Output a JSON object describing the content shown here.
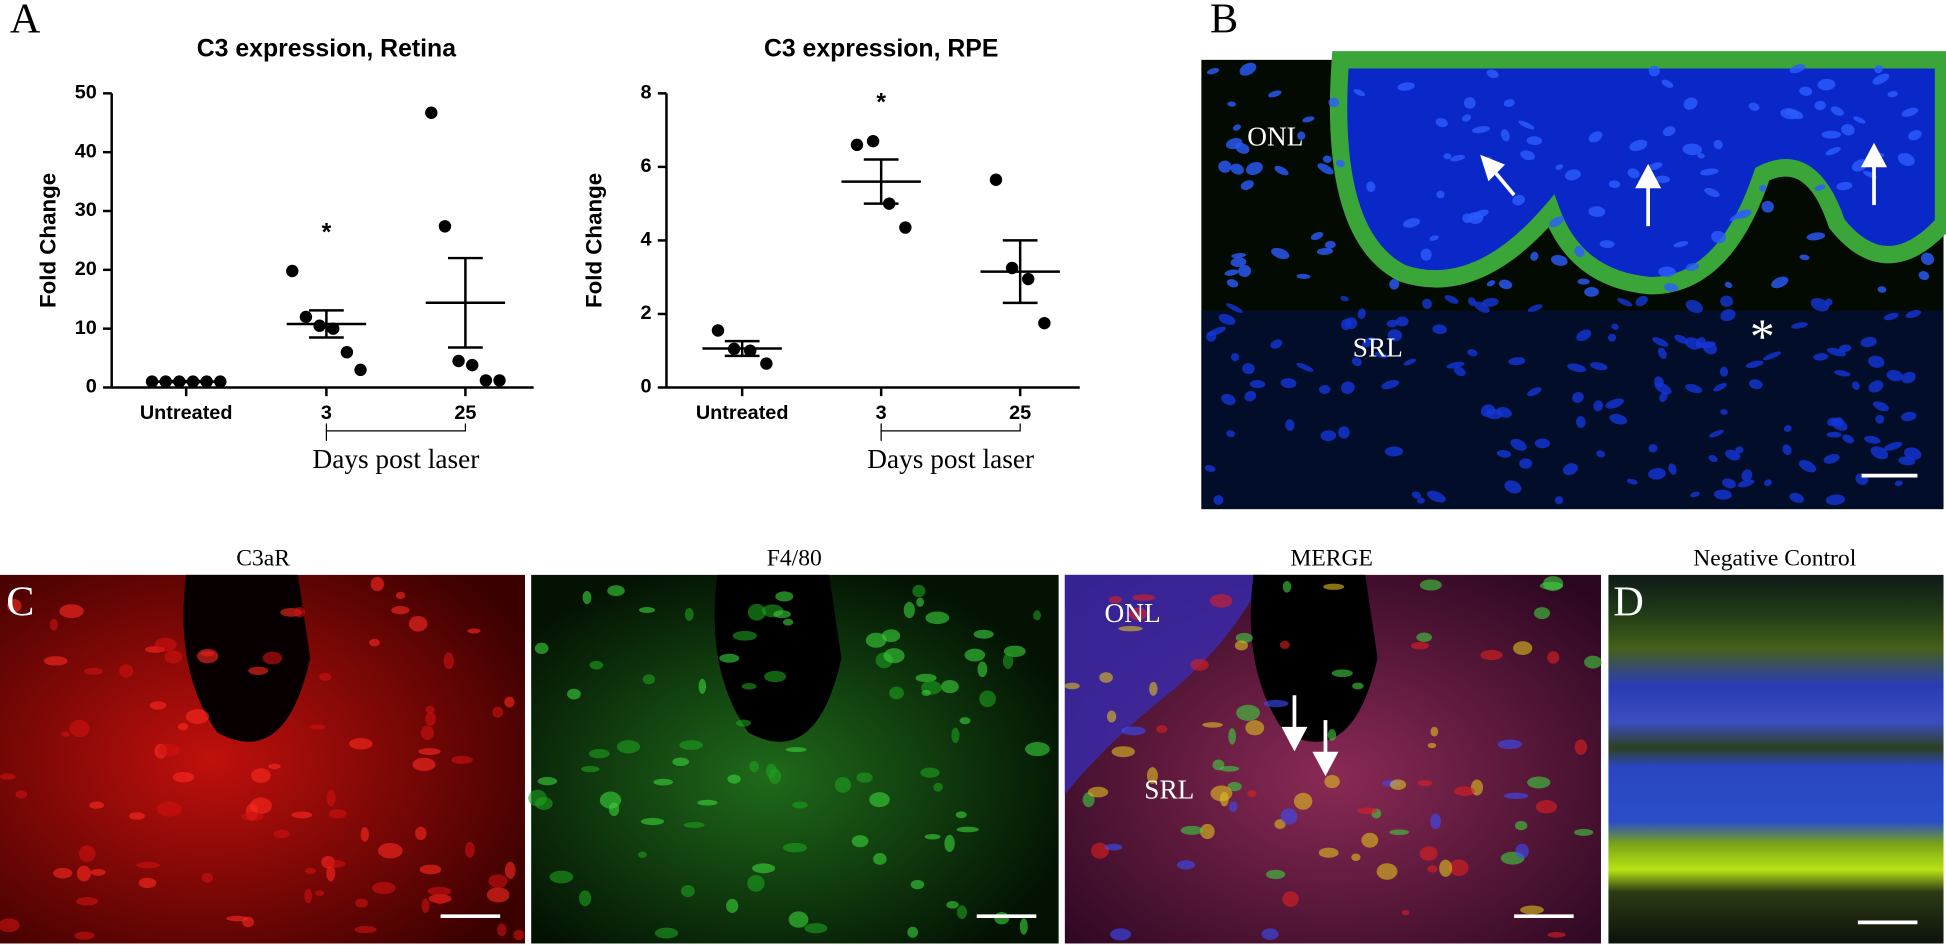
{
  "panel_letters": [
    "A",
    "B",
    "C",
    "D"
  ],
  "chart_data": [
    {
      "type": "dotplot",
      "title": "C3 expression, Retina",
      "y_label": "Fold Change",
      "categories": [
        "Untreated",
        "3",
        "25"
      ],
      "x_label": "Days post laser",
      "annotation": "*",
      "points": [
        [
          1,
          1,
          1,
          1,
          1,
          1
        ],
        [
          19.8,
          12,
          10.5,
          10,
          6,
          3
        ],
        [
          46.7,
          27.4,
          4.5,
          3.8,
          1.2,
          1.2
        ]
      ],
      "means": [
        1,
        10.8,
        14.4
      ],
      "sem": [
        0.1,
        2.3,
        7.6
      ],
      "ylim": [
        0,
        50
      ],
      "yticks": [
        0,
        10,
        20,
        30,
        40,
        50
      ],
      "color": "#000000"
    },
    {
      "type": "dotplot",
      "title": "C3 expression, RPE",
      "y_label": "Fold Change",
      "categories": [
        "Untreated",
        "3",
        "25"
      ],
      "x_label": "Days post laser",
      "annotation": "*",
      "points": [
        [
          1.55,
          1.05,
          1.0,
          0.65
        ],
        [
          6.6,
          6.7,
          5.0,
          4.35
        ],
        [
          5.65,
          3.25,
          2.95,
          1.75
        ]
      ],
      "means": [
        1.06,
        5.6,
        3.15
      ],
      "sem": [
        0.2,
        0.6,
        0.85
      ],
      "ylim": [
        0,
        8
      ],
      "yticks": [
        0,
        2,
        4,
        6,
        8
      ],
      "color": "#000000"
    }
  ],
  "image_b": {
    "labels": [
      "ONL",
      "SRL",
      "*"
    ]
  },
  "image_c": {
    "titles": [
      "C3aR",
      "F4/80",
      "MERGE"
    ],
    "merge_labels": [
      "ONL",
      "SRL"
    ]
  },
  "image_d": {
    "title": "Negative Control"
  }
}
